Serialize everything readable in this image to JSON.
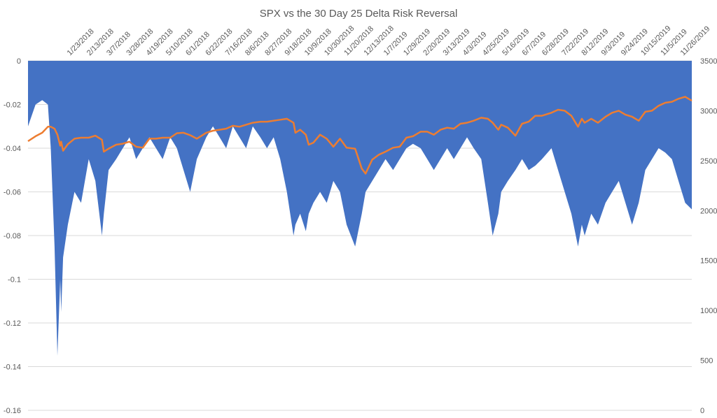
{
  "chart_data": {
    "type": "area",
    "title": "SPX vs the 30 Day 25 Delta Risk Reversal",
    "x_tick_labels": [
      "1/23/2018",
      "2/13/2018",
      "3/7/2018",
      "3/28/2018",
      "4/19/2018",
      "5/10/2018",
      "6/1/2018",
      "6/22/2018",
      "7/16/2018",
      "8/6/2018",
      "8/27/2018",
      "9/18/2018",
      "10/9/2018",
      "10/30/2018",
      "11/20/2018",
      "12/13/2018",
      "1/7/2019",
      "1/29/2019",
      "2/20/2019",
      "3/13/2019",
      "4/3/2019",
      "4/25/2019",
      "5/16/2019",
      "6/7/2019",
      "6/28/2019",
      "7/22/2019",
      "8/12/2019",
      "9/3/2019",
      "9/24/2019",
      "10/15/2019",
      "11/5/2019",
      "11/26/2019"
    ],
    "y_left": {
      "ylim": [
        -0.16,
        0
      ],
      "ticks": [
        0,
        -0.02,
        -0.04,
        -0.06,
        -0.08,
        -0.1,
        -0.12,
        -0.14,
        -0.16
      ]
    },
    "y_right": {
      "ylim": [
        0,
        3500
      ],
      "ticks": [
        0,
        500,
        1000,
        1500,
        2000,
        2500,
        3000,
        3500
      ]
    },
    "grid": true,
    "colors": {
      "area": "#4472c4",
      "line": "#ed7d31",
      "grid": "#d9d9d9",
      "text": "#595959"
    },
    "series": [
      {
        "type": "area",
        "axis": "left",
        "x": [
          "1/2/2018",
          "1/10/2018",
          "1/17/2018",
          "1/23/2018",
          "1/26/2018",
          "1/30/2018",
          "2/2/2018",
          "2/5/2018",
          "2/6/2018",
          "2/8/2018",
          "2/13/2018",
          "2/20/2018",
          "2/27/2018",
          "3/7/2018",
          "3/14/2018",
          "3/21/2018",
          "3/23/2018",
          "3/28/2018",
          "4/5/2018",
          "4/12/2018",
          "4/19/2018",
          "4/26/2018",
          "5/3/2018",
          "5/10/2018",
          "5/17/2018",
          "5/24/2018",
          "6/1/2018",
          "6/8/2018",
          "6/15/2018",
          "6/22/2018",
          "6/29/2018",
          "7/9/2018",
          "7/16/2018",
          "7/23/2018",
          "7/30/2018",
          "8/6/2018",
          "8/13/2018",
          "8/20/2018",
          "8/27/2018",
          "9/4/2018",
          "9/11/2018",
          "9/18/2018",
          "9/25/2018",
          "10/2/2018",
          "10/9/2018",
          "10/11/2018",
          "10/16/2018",
          "10/22/2018",
          "10/25/2018",
          "10/30/2018",
          "11/6/2018",
          "11/13/2018",
          "11/20/2018",
          "11/27/2018",
          "12/4/2018",
          "12/13/2018",
          "12/20/2018",
          "12/24/2018",
          "12/31/2018",
          "1/7/2019",
          "1/14/2019",
          "1/22/2019",
          "1/29/2019",
          "2/5/2019",
          "2/12/2019",
          "2/20/2019",
          "2/27/2019",
          "3/6/2019",
          "3/13/2019",
          "3/20/2019",
          "3/27/2019",
          "4/3/2019",
          "4/10/2019",
          "4/17/2019",
          "4/25/2019",
          "5/2/2019",
          "5/7/2019",
          "5/13/2019",
          "5/16/2019",
          "5/23/2019",
          "5/31/2019",
          "6/7/2019",
          "6/14/2019",
          "6/21/2019",
          "6/28/2019",
          "7/8/2019",
          "7/15/2019",
          "7/22/2019",
          "7/29/2019",
          "8/5/2019",
          "8/9/2019",
          "8/12/2019",
          "8/19/2019",
          "8/26/2019",
          "9/3/2019",
          "9/10/2019",
          "9/17/2019",
          "9/24/2019",
          "10/1/2019",
          "10/8/2019",
          "10/15/2019",
          "10/22/2019",
          "10/29/2019",
          "11/5/2019",
          "11/12/2019",
          "11/19/2019",
          "11/26/2019",
          "12/3/2019"
        ],
        "values": [
          -0.03,
          -0.02,
          -0.018,
          -0.02,
          -0.04,
          -0.085,
          -0.135,
          -0.1,
          -0.115,
          -0.09,
          -0.075,
          -0.06,
          -0.065,
          -0.045,
          -0.055,
          -0.08,
          -0.07,
          -0.05,
          -0.045,
          -0.04,
          -0.035,
          -0.045,
          -0.04,
          -0.035,
          -0.04,
          -0.045,
          -0.035,
          -0.04,
          -0.05,
          -0.06,
          -0.045,
          -0.035,
          -0.03,
          -0.035,
          -0.04,
          -0.03,
          -0.035,
          -0.04,
          -0.03,
          -0.035,
          -0.04,
          -0.035,
          -0.045,
          -0.06,
          -0.08,
          -0.075,
          -0.07,
          -0.078,
          -0.07,
          -0.065,
          -0.06,
          -0.065,
          -0.055,
          -0.06,
          -0.075,
          -0.085,
          -0.07,
          -0.06,
          -0.055,
          -0.05,
          -0.045,
          -0.05,
          -0.045,
          -0.04,
          -0.038,
          -0.04,
          -0.045,
          -0.05,
          -0.045,
          -0.04,
          -0.045,
          -0.04,
          -0.035,
          -0.04,
          -0.045,
          -0.065,
          -0.08,
          -0.07,
          -0.06,
          -0.055,
          -0.05,
          -0.045,
          -0.05,
          -0.048,
          -0.045,
          -0.04,
          -0.05,
          -0.06,
          -0.07,
          -0.085,
          -0.075,
          -0.08,
          -0.07,
          -0.075,
          -0.065,
          -0.06,
          -0.055,
          -0.065,
          -0.075,
          -0.065,
          -0.05,
          -0.045,
          -0.04,
          -0.042,
          -0.045,
          -0.055,
          -0.065,
          -0.068
        ]
      },
      {
        "type": "line",
        "axis": "right",
        "x": [
          "1/2/2018",
          "1/10/2018",
          "1/17/2018",
          "1/23/2018",
          "1/26/2018",
          "1/30/2018",
          "2/2/2018",
          "2/5/2018",
          "2/6/2018",
          "2/8/2018",
          "2/13/2018",
          "2/20/2018",
          "2/27/2018",
          "3/7/2018",
          "3/14/2018",
          "3/21/2018",
          "3/23/2018",
          "3/28/2018",
          "4/5/2018",
          "4/12/2018",
          "4/19/2018",
          "4/26/2018",
          "5/3/2018",
          "5/10/2018",
          "5/17/2018",
          "5/24/2018",
          "6/1/2018",
          "6/8/2018",
          "6/15/2018",
          "6/22/2018",
          "6/29/2018",
          "7/9/2018",
          "7/16/2018",
          "7/23/2018",
          "7/30/2018",
          "8/6/2018",
          "8/13/2018",
          "8/20/2018",
          "8/27/2018",
          "9/4/2018",
          "9/11/2018",
          "9/18/2018",
          "9/25/2018",
          "10/2/2018",
          "10/9/2018",
          "10/11/2018",
          "10/16/2018",
          "10/22/2018",
          "10/25/2018",
          "10/30/2018",
          "11/6/2018",
          "11/13/2018",
          "11/20/2018",
          "11/27/2018",
          "12/4/2018",
          "12/13/2018",
          "12/20/2018",
          "12/24/2018",
          "12/31/2018",
          "1/7/2019",
          "1/14/2019",
          "1/22/2019",
          "1/29/2019",
          "2/5/2019",
          "2/12/2019",
          "2/20/2019",
          "2/27/2019",
          "3/6/2019",
          "3/13/2019",
          "3/20/2019",
          "3/27/2019",
          "4/3/2019",
          "4/10/2019",
          "4/17/2019",
          "4/25/2019",
          "5/2/2019",
          "5/7/2019",
          "5/13/2019",
          "5/16/2019",
          "5/23/2019",
          "5/31/2019",
          "6/7/2019",
          "6/14/2019",
          "6/21/2019",
          "6/28/2019",
          "7/8/2019",
          "7/15/2019",
          "7/22/2019",
          "7/29/2019",
          "8/5/2019",
          "8/9/2019",
          "8/12/2019",
          "8/19/2019",
          "8/26/2019",
          "9/3/2019",
          "9/10/2019",
          "9/17/2019",
          "9/24/2019",
          "10/1/2019",
          "10/8/2019",
          "10/15/2019",
          "10/22/2019",
          "10/29/2019",
          "11/5/2019",
          "11/12/2019",
          "11/19/2019",
          "11/26/2019",
          "12/3/2019"
        ],
        "values": [
          2695,
          2745,
          2780,
          2840,
          2840,
          2820,
          2760,
          2650,
          2690,
          2600,
          2665,
          2720,
          2730,
          2730,
          2750,
          2710,
          2590,
          2620,
          2660,
          2670,
          2690,
          2640,
          2630,
          2720,
          2720,
          2730,
          2730,
          2775,
          2780,
          2755,
          2720,
          2780,
          2800,
          2810,
          2820,
          2850,
          2840,
          2860,
          2880,
          2890,
          2890,
          2900,
          2910,
          2920,
          2880,
          2780,
          2810,
          2760,
          2660,
          2680,
          2760,
          2720,
          2640,
          2720,
          2630,
          2620,
          2420,
          2370,
          2510,
          2560,
          2590,
          2630,
          2640,
          2730,
          2745,
          2790,
          2790,
          2760,
          2810,
          2830,
          2820,
          2870,
          2880,
          2900,
          2930,
          2920,
          2880,
          2810,
          2860,
          2830,
          2750,
          2870,
          2890,
          2950,
          2950,
          2980,
          3010,
          3000,
          2950,
          2840,
          2920,
          2880,
          2920,
          2880,
          2940,
          2980,
          3000,
          2960,
          2940,
          2900,
          2990,
          3000,
          3050,
          3080,
          3090,
          3120,
          3140,
          3100
        ]
      }
    ]
  }
}
